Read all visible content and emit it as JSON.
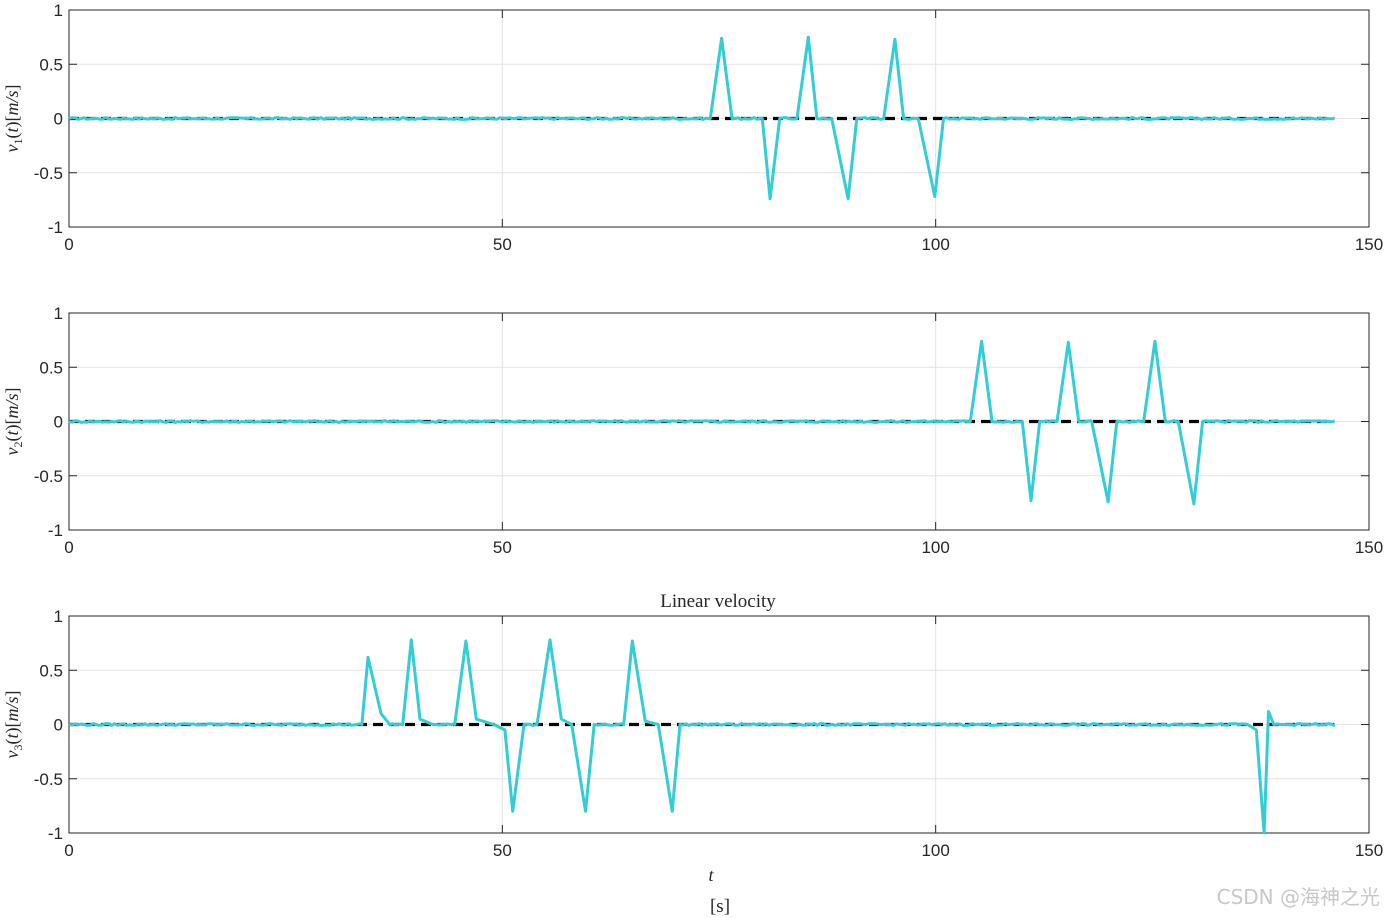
{
  "chart_data": [
    {
      "type": "line",
      "title": "",
      "ylabel": "v_1(t)[m/s]",
      "xlabel": "",
      "xlim": [
        0,
        150
      ],
      "ylim": [
        -1,
        1
      ],
      "xticks": [
        "0",
        "50",
        "100",
        "150"
      ],
      "yticks": [
        "-1",
        "-0.5",
        "0",
        "0.5",
        "1"
      ],
      "grid": true,
      "series": [
        {
          "role": "reference",
          "color": "#000000",
          "x": [
            0,
            146
          ],
          "y": [
            0,
            0
          ]
        },
        {
          "role": "measured",
          "color": "#32CDD5",
          "x": [
            0,
            74,
            75.3,
            76.5,
            78,
            80,
            80.9,
            82,
            84,
            85.3,
            86.3,
            88,
            89.9,
            90.9,
            92,
            94,
            95.3,
            96.3,
            98,
            99.9,
            100.9,
            102,
            146
          ],
          "y": [
            0,
            0,
            0.74,
            0,
            0,
            0,
            -0.74,
            0,
            0,
            0.75,
            0,
            0,
            -0.74,
            0,
            0,
            0,
            0.73,
            0,
            0,
            -0.72,
            0,
            0,
            0
          ]
        }
      ]
    },
    {
      "type": "line",
      "title": "",
      "ylabel": "v_2(t)[m/s]",
      "xlabel": "",
      "xlim": [
        0,
        150
      ],
      "ylim": [
        -1,
        1
      ],
      "xticks": [
        "0",
        "50",
        "100",
        "150"
      ],
      "yticks": [
        "-1",
        "-0.5",
        "0",
        "0.5",
        "1"
      ],
      "grid": true,
      "series": [
        {
          "role": "reference",
          "color": "#000000",
          "x": [
            0,
            146
          ],
          "y": [
            0,
            0
          ]
        },
        {
          "role": "measured",
          "color": "#32CDD5",
          "x": [
            0,
            104,
            105.3,
            106.5,
            108,
            110,
            111,
            112,
            114,
            115.3,
            116.5,
            118,
            119.9,
            120.9,
            122,
            124,
            125.3,
            126.5,
            128,
            129.8,
            130.8,
            132,
            146
          ],
          "y": [
            0,
            0,
            0.74,
            0,
            0,
            0,
            -0.73,
            0,
            0,
            0.73,
            0,
            0,
            -0.74,
            0,
            0,
            0,
            0.74,
            0,
            0,
            -0.76,
            0,
            0,
            0
          ]
        }
      ]
    },
    {
      "type": "line",
      "title": "Linear velocity",
      "ylabel": "v_3(t)[m/s]",
      "xlabel": "t",
      "xlabel2": "[s]",
      "xlim": [
        0,
        150
      ],
      "ylim": [
        -1,
        1
      ],
      "xticks": [
        "0",
        "50",
        "100",
        "150"
      ],
      "yticks": [
        "-1",
        "-0.5",
        "0",
        "0.5",
        "1"
      ],
      "grid": true,
      "series": [
        {
          "role": "reference",
          "color": "#000000",
          "x": [
            0,
            146
          ],
          "y": [
            0,
            0
          ]
        },
        {
          "role": "measured",
          "color": "#32CDD5",
          "x": [
            0,
            33.8,
            34.5,
            36,
            37,
            38.5,
            39.5,
            40.5,
            42,
            44.5,
            45.8,
            47,
            49,
            50.3,
            51.2,
            52.5,
            54,
            55.5,
            56.8,
            58,
            59.6,
            60.6,
            62,
            64,
            65,
            66.5,
            68,
            69.6,
            70.5,
            72,
            136,
            137,
            137.9,
            138.4,
            139,
            140,
            146
          ],
          "y": [
            0,
            0,
            0.62,
            0.1,
            0,
            0,
            0.78,
            0.05,
            0,
            0,
            0.77,
            0.05,
            0,
            -0.05,
            -0.8,
            0,
            0,
            0.78,
            0.05,
            0,
            -0.8,
            0,
            0,
            0,
            0.77,
            0.03,
            0,
            -0.8,
            0,
            0,
            0,
            -0.05,
            -1.0,
            0.12,
            0,
            0,
            0
          ]
        }
      ]
    }
  ],
  "watermark": "CSDN @海神之光"
}
